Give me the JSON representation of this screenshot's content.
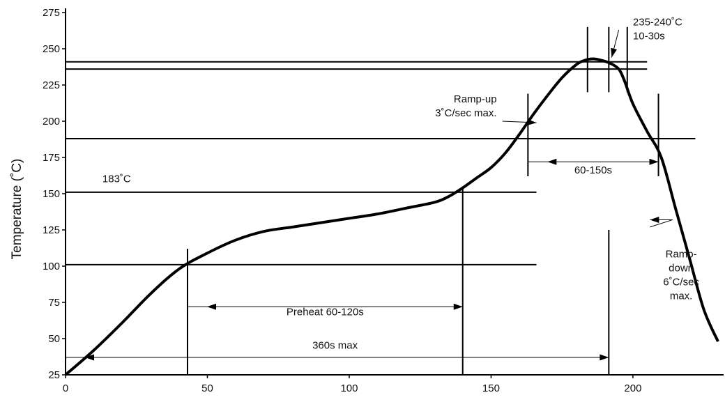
{
  "chart_data": {
    "type": "line",
    "title": "",
    "xlabel": "",
    "ylabel": "Temperature (˚C)",
    "xlim": [
      0,
      230
    ],
    "ylim": [
      25,
      275
    ],
    "xticks": [
      0,
      50,
      100,
      150,
      200
    ],
    "yticks": [
      25,
      50,
      75,
      100,
      125,
      150,
      175,
      200,
      225,
      250,
      275
    ],
    "grid": false,
    "series": [
      {
        "x": [
          0,
          10,
          20,
          30,
          40,
          50,
          60,
          70,
          80,
          90,
          100,
          110,
          120,
          130,
          135,
          140,
          145,
          150,
          155,
          160,
          165,
          170,
          175,
          180,
          183,
          186,
          189,
          192,
          195,
          197,
          200,
          205,
          210,
          215,
          220,
          225,
          230
        ],
        "y": [
          25,
          42,
          61,
          81,
          98,
          109,
          118,
          124,
          127,
          130,
          133,
          136,
          140,
          144,
          148,
          154,
          161,
          168,
          178,
          191,
          205,
          218,
          230,
          239,
          242,
          243,
          242,
          240,
          236,
          228,
          212,
          193,
          175,
          140,
          105,
          70,
          48
        ]
      }
    ],
    "hlines": [
      {
        "y": 101,
        "x0": 0,
        "x1": 166
      },
      {
        "y": 151,
        "x0": 0,
        "x1": 166
      },
      {
        "y": 188,
        "x0": 0,
        "x1": 222
      },
      {
        "y": 236,
        "x0": 0,
        "x1": 205
      },
      {
        "y": 241,
        "x0": 0,
        "x1": 205
      }
    ],
    "vlines": [
      {
        "x": 43,
        "y0": 25,
        "y1": 112
      },
      {
        "x": 140,
        "y0": 25,
        "y1": 155
      },
      {
        "x": 163,
        "y0": 162,
        "y1": 219
      },
      {
        "x": 209,
        "y0": 162,
        "y1": 219
      },
      {
        "x": 184,
        "y0": 220,
        "y1": 265
      },
      {
        "x": 191.5,
        "y0": 25,
        "y1": 125
      },
      {
        "x": 191.5,
        "y0": 220,
        "y1": 265
      },
      {
        "x": 198,
        "y0": 220,
        "y1": 265
      }
    ],
    "spans": [
      {
        "label": "Preheat 60-120s",
        "x0": 43,
        "x1": 140,
        "y": 72,
        "label_x": 91.5,
        "label_y": 66
      },
      {
        "label": "360s max",
        "x0": 0,
        "x1": 191.5,
        "y": 37,
        "label_x": 95,
        "label_y": 43
      },
      {
        "label": "60-150s",
        "x0": 163,
        "x1": 209,
        "y": 172,
        "label_x": 186,
        "label_y": 164
      }
    ],
    "annotations": [
      {
        "lines": [
          "183˚C"
        ],
        "x": 13,
        "y": 158,
        "anchor": "start"
      },
      {
        "lines": [
          "Ramp-up",
          "3˚C/sec max."
        ],
        "x": 152,
        "y": 213,
        "anchor": "end"
      },
      {
        "lines": [
          "235-240˚C",
          "10-30s"
        ],
        "x": 200,
        "y": 266,
        "anchor": "start"
      },
      {
        "lines": [
          "Ramp-",
          "down",
          "6˚C/sec",
          "max."
        ],
        "x": 217,
        "y": 106,
        "anchor": "middle"
      }
    ],
    "arrows": [
      {
        "from": [
          154,
          200
        ],
        "to": [
          166,
          199
        ]
      },
      {
        "from": [
          195,
          263
        ],
        "to": [
          192.5,
          244
        ]
      },
      {
        "from": [
          206,
          127
        ],
        "to": [
          206,
          132
        ],
        "via": [
          214,
          132
        ]
      }
    ]
  }
}
